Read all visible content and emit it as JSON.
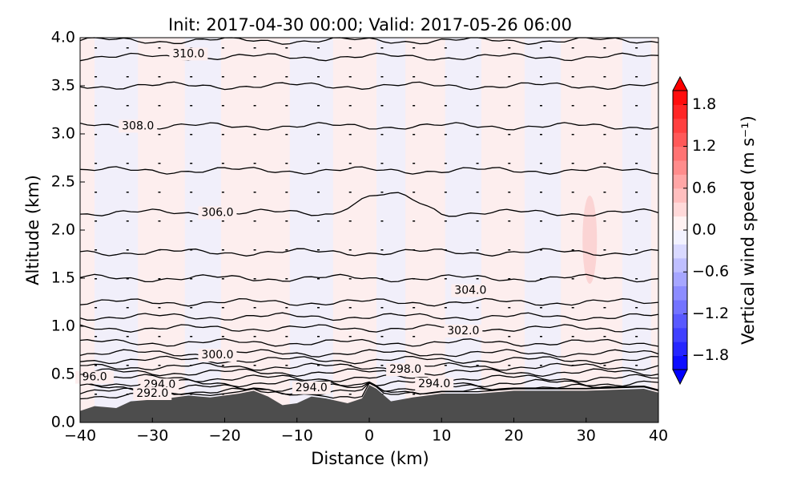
{
  "chart_data": {
    "type": "cross-section",
    "title": "Init: 2017-04-30 00:00; Valid: 2017-05-26 06:00",
    "x_label": "Distance (km)",
    "y_label": "Altitude (km)",
    "xlim": [
      -40,
      40
    ],
    "xticks": [
      {
        "value": -40,
        "label": "−40"
      },
      {
        "value": -30,
        "label": "−30"
      },
      {
        "value": -20,
        "label": "−20"
      },
      {
        "value": -10,
        "label": "−10"
      },
      0,
      10,
      20,
      30,
      40
    ],
    "ylim": [
      0,
      4
    ],
    "yticks": [
      {
        "value": 0,
        "label": "0.0"
      },
      0.5,
      {
        "value": 1,
        "label": "1.0"
      },
      1.5,
      {
        "value": 2,
        "label": "2.0"
      },
      2.5,
      {
        "value": 3,
        "label": "3.0"
      },
      3.5,
      {
        "value": 4,
        "label": "4.0"
      }
    ],
    "contour_labels": [
      "310.0",
      "308.0",
      "306.0",
      "304.0",
      "302.0",
      "300.0",
      "298.0",
      "96.0",
      "294.0",
      "292.0",
      "294.0",
      "294.0"
    ],
    "colorbar_label": "Vertical wind speed (m s⁻¹)",
    "colorbar_lim": [
      -2,
      2
    ],
    "colorbar_ticks": [
      {
        "value": -1.8,
        "label": "−1.8"
      },
      {
        "value": -1.2,
        "label": "−1.2"
      },
      {
        "value": -0.6,
        "label": "−0.6"
      },
      {
        "value": 0,
        "label": "0.0"
      },
      0.6,
      1.2,
      1.8
    ]
  }
}
